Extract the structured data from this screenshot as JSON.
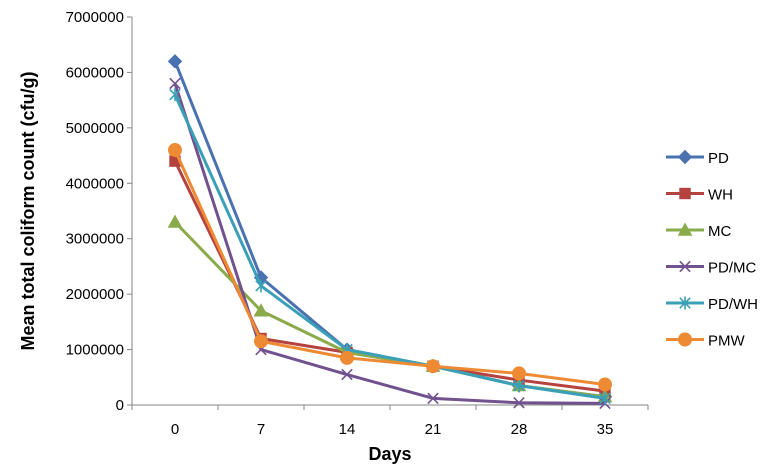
{
  "chart_data": {
    "type": "line",
    "title": "",
    "xlabel": "Days",
    "ylabel": "Mean total coliform count (cfu/g)",
    "x": [
      0,
      7,
      14,
      21,
      28,
      35
    ],
    "x_tick_labels": [
      "0",
      "7",
      "14",
      "21",
      "28",
      "35"
    ],
    "ylim": [
      0,
      7000000
    ],
    "y_tick_labels": [
      "0",
      "1000000",
      "2000000",
      "3000000",
      "4000000",
      "5000000",
      "6000000",
      "7000000"
    ],
    "grid": false,
    "legend_position": "right",
    "series": [
      {
        "name": "PD",
        "color": "#4a72b0",
        "marker": "diamond",
        "values": [
          6200000,
          2300000,
          1000000,
          700000,
          350000,
          150000
        ]
      },
      {
        "name": "WH",
        "color": "#b5423f",
        "marker": "square",
        "values": [
          4400000,
          1200000,
          950000,
          700000,
          450000,
          250000
        ]
      },
      {
        "name": "MC",
        "color": "#8aab4a",
        "marker": "triangle",
        "values": [
          3300000,
          1700000,
          950000,
          700000,
          350000,
          150000
        ]
      },
      {
        "name": "PD/MC",
        "color": "#71528f",
        "marker": "x",
        "values": [
          5800000,
          1000000,
          550000,
          120000,
          40000,
          30000
        ]
      },
      {
        "name": "PD/WH",
        "color": "#3aa0b8",
        "marker": "star",
        "values": [
          5600000,
          2150000,
          1000000,
          700000,
          350000,
          120000
        ]
      },
      {
        "name": "PMW",
        "color": "#ee8a33",
        "marker": "circle",
        "values": [
          4600000,
          1150000,
          850000,
          700000,
          570000,
          370000
        ]
      }
    ]
  }
}
